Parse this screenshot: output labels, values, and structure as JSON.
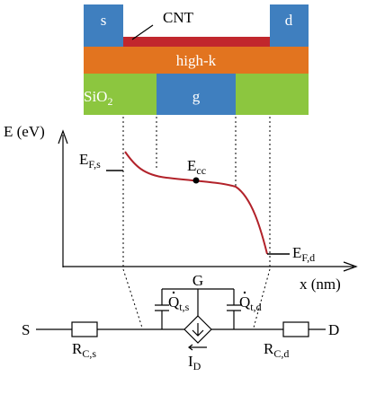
{
  "stack": {
    "source": "s",
    "drain": "d",
    "channel": "CNT",
    "dielectric": "high-k",
    "oxide": {
      "main": "SiO",
      "sub": "2"
    },
    "gate": "g"
  },
  "band_diagram": {
    "y_label": "E (eV)",
    "x_label": "x (nm)",
    "fermi_source": {
      "main": "E",
      "sub": "F,s"
    },
    "conduction_edge": {
      "main": "E",
      "sub": "cc"
    },
    "fermi_drain": {
      "main": "E",
      "sub": "F,d"
    }
  },
  "circuit": {
    "gate": "G",
    "source": "S",
    "drain": "D",
    "charge_source": {
      "main": "Q",
      "sub": "t,s"
    },
    "charge_drain": {
      "main": "Q",
      "sub": "t,d"
    },
    "resistance_source": {
      "main": "R",
      "sub": "C,s"
    },
    "resistance_drain": {
      "main": "R",
      "sub": "C,d"
    },
    "current": {
      "main": "I",
      "sub": "D"
    }
  }
}
